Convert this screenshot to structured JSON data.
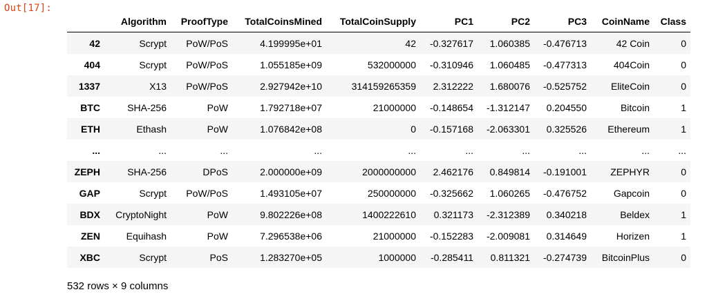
{
  "cell": {
    "prompt": "Out[17]:"
  },
  "dataframe": {
    "columns": [
      "",
      "Algorithm",
      "ProofType",
      "TotalCoinsMined",
      "TotalCoinSupply",
      "PC1",
      "PC2",
      "PC3",
      "CoinName",
      "Class"
    ],
    "rows": [
      [
        "42",
        "Scrypt",
        "PoW/PoS",
        "4.199995e+01",
        "42",
        "-0.327617",
        "1.060385",
        "-0.476713",
        "42 Coin",
        "0"
      ],
      [
        "404",
        "Scrypt",
        "PoW/PoS",
        "1.055185e+09",
        "532000000",
        "-0.310946",
        "1.060485",
        "-0.477313",
        "404Coin",
        "0"
      ],
      [
        "1337",
        "X13",
        "PoW/PoS",
        "2.927942e+10",
        "314159265359",
        "2.312222",
        "1.680076",
        "-0.525752",
        "EliteCoin",
        "0"
      ],
      [
        "BTC",
        "SHA-256",
        "PoW",
        "1.792718e+07",
        "21000000",
        "-0.148654",
        "-1.312147",
        "0.204550",
        "Bitcoin",
        "1"
      ],
      [
        "ETH",
        "Ethash",
        "PoW",
        "1.076842e+08",
        "0",
        "-0.157168",
        "-2.063301",
        "0.325526",
        "Ethereum",
        "1"
      ],
      [
        "...",
        "...",
        "...",
        "...",
        "...",
        "...",
        "...",
        "...",
        "...",
        "..."
      ],
      [
        "ZEPH",
        "SHA-256",
        "DPoS",
        "2.000000e+09",
        "2000000000",
        "2.462176",
        "0.849814",
        "-0.191001",
        "ZEPHYR",
        "0"
      ],
      [
        "GAP",
        "Scrypt",
        "PoW/PoS",
        "1.493105e+07",
        "250000000",
        "-0.325662",
        "1.060265",
        "-0.476752",
        "Gapcoin",
        "0"
      ],
      [
        "BDX",
        "CryptoNight",
        "PoW",
        "9.802226e+08",
        "1400222610",
        "0.321173",
        "-2.312389",
        "0.340218",
        "Beldex",
        "1"
      ],
      [
        "ZEN",
        "Equihash",
        "PoW",
        "7.296538e+06",
        "21000000",
        "-0.152283",
        "-2.009081",
        "0.314649",
        "Horizen",
        "1"
      ],
      [
        "XBC",
        "Scrypt",
        "PoS",
        "1.283270e+05",
        "1000000",
        "-0.285411",
        "0.811321",
        "-0.274739",
        "BitcoinPlus",
        "0"
      ]
    ],
    "summary": "532 rows × 9 columns"
  },
  "colors": {
    "prompt": "#d84315",
    "stripe": "#f5f5f5",
    "text": "#000000"
  }
}
